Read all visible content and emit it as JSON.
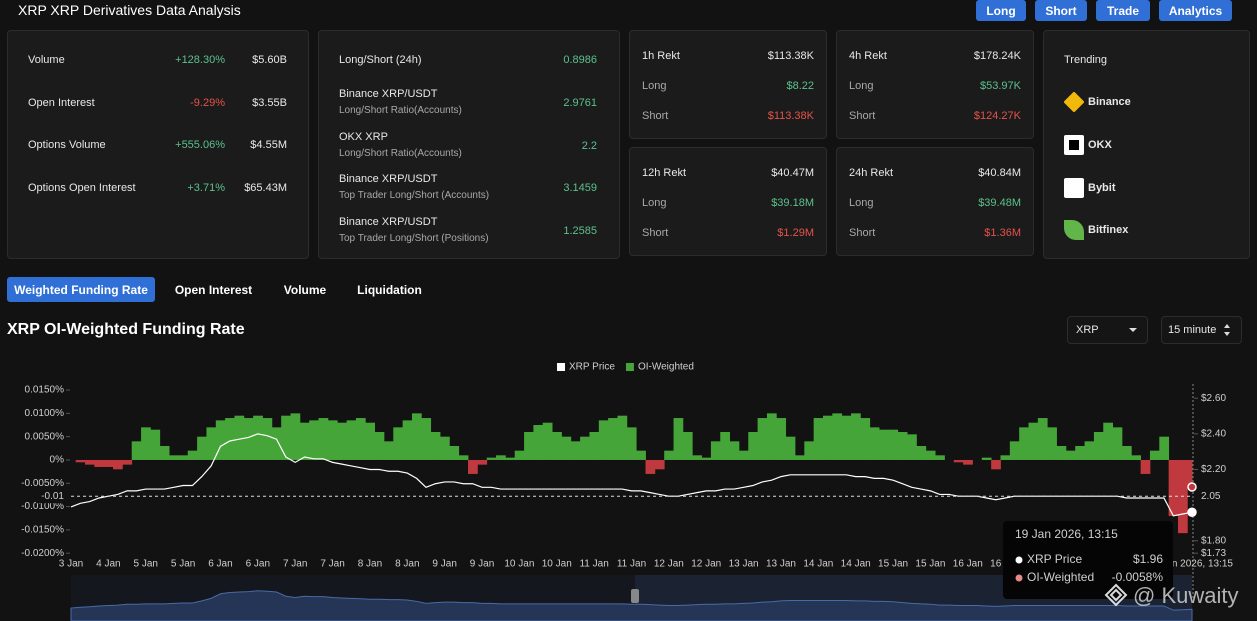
{
  "header": {
    "title": "XRP XRP Derivatives Data Analysis",
    "buttons": [
      "Long",
      "Short",
      "Trade",
      "Analytics"
    ]
  },
  "market_stats": {
    "rows": [
      {
        "label": "Volume",
        "change": "+128.30%",
        "value": "$5.60B"
      },
      {
        "label": "Open Interest",
        "change": "-9.29%",
        "value": "$3.55B"
      },
      {
        "label": "Options Volume",
        "change": "+555.06%",
        "value": "$4.55M"
      },
      {
        "label": "Options Open Interest",
        "change": "+3.71%",
        "value": "$65.43M"
      }
    ]
  },
  "long_short": {
    "rows": [
      {
        "label": "Long/Short (24h)",
        "value": "0.8986"
      },
      {
        "label": "Binance XRP/USDT",
        "sublabel": "Long/Short Ratio(Accounts)",
        "value": "2.9761"
      },
      {
        "label": "OKX XRP",
        "sublabel": "Long/Short Ratio(Accounts)",
        "value": "2.2"
      },
      {
        "label": "Binance XRP/USDT",
        "sublabel": "Top Trader Long/Short (Accounts)",
        "value": "3.1459"
      },
      {
        "label": "Binance XRP/USDT",
        "sublabel": "Top Trader Long/Short (Positions)",
        "value": "1.2585"
      }
    ]
  },
  "rekt": [
    {
      "title": "1h Rekt",
      "total": "$113.38K",
      "long_label": "Long",
      "long": "$8.22",
      "short_label": "Short",
      "short": "$113.38K"
    },
    {
      "title": "4h Rekt",
      "total": "$178.24K",
      "long_label": "Long",
      "long": "$53.97K",
      "short_label": "Short",
      "short": "$124.27K"
    },
    {
      "title": "12h Rekt",
      "total": "$40.47M",
      "long_label": "Long",
      "long": "$39.18M",
      "short_label": "Short",
      "short": "$1.29M"
    },
    {
      "title": "24h Rekt",
      "total": "$40.84M",
      "long_label": "Long",
      "long": "$39.48M",
      "short_label": "Short",
      "short": "$1.36M"
    }
  ],
  "trending": {
    "title": "Trending",
    "exchanges": [
      "Binance",
      "OKX",
      "Bybit",
      "Bitfinex"
    ]
  },
  "tabs": [
    {
      "label": "Weighted Funding Rate",
      "active": true
    },
    {
      "label": "Open Interest",
      "active": false
    },
    {
      "label": "Volume",
      "active": false
    },
    {
      "label": "Liquidation",
      "active": false
    }
  ],
  "chart_controls": {
    "asset": "XRP",
    "interval": "15 minute"
  },
  "chart_data": {
    "type": "combo",
    "title": "XRP OI-Weighted Funding Rate",
    "categories": [
      "3 Jan",
      null,
      null,
      null,
      "4 Jan",
      null,
      null,
      null,
      "5 Jan",
      null,
      null,
      null,
      "5 Jan",
      null,
      null,
      null,
      "6 Jan",
      null,
      null,
      null,
      "6 Jan",
      null,
      null,
      null,
      "7 Jan",
      null,
      null,
      null,
      "7 Jan",
      null,
      null,
      null,
      "8 Jan",
      null,
      null,
      null,
      "8 Jan",
      null,
      null,
      null,
      "9 Jan",
      null,
      null,
      null,
      "9 Jan",
      null,
      null,
      null,
      "10 Jan",
      null,
      null,
      null,
      "10 Jan",
      null,
      null,
      null,
      "11 Jan",
      null,
      null,
      null,
      "11 Jan",
      null,
      null,
      null,
      "12 Jan",
      null,
      null,
      null,
      "12 Jan",
      null,
      null,
      null,
      "13 Jan",
      null,
      null,
      null,
      "13 Jan",
      null,
      null,
      null,
      "14 Jan",
      null,
      null,
      null,
      "14 Jan",
      null,
      null,
      null,
      "15 Jan",
      null,
      null,
      null,
      "15 Jan",
      null,
      null,
      null,
      "16 Jan",
      null,
      null,
      null,
      "16 Jan",
      null,
      null,
      null,
      null,
      null,
      null,
      null,
      null,
      null,
      null,
      null,
      null,
      null,
      null,
      null,
      null,
      null,
      null,
      null,
      null
    ],
    "series": [
      {
        "name": "XRP Price",
        "type": "line",
        "axis": "y2",
        "color": "#ffffff",
        "values": [
          1.99,
          2.01,
          2.02,
          2.04,
          2.05,
          2.06,
          2.08,
          2.08,
          2.09,
          2.09,
          2.09,
          2.1,
          2.11,
          2.11,
          2.16,
          2.22,
          2.33,
          2.36,
          2.37,
          2.38,
          2.4,
          2.39,
          2.37,
          2.27,
          2.24,
          2.27,
          2.26,
          2.26,
          2.24,
          2.23,
          2.22,
          2.21,
          2.2,
          2.2,
          2.19,
          2.19,
          2.18,
          2.15,
          2.1,
          2.12,
          2.13,
          2.13,
          2.12,
          2.12,
          2.1,
          2.1,
          2.09,
          2.09,
          2.09,
          2.09,
          2.09,
          2.09,
          2.09,
          2.09,
          2.09,
          2.09,
          2.09,
          2.09,
          2.09,
          2.09,
          2.08,
          2.08,
          2.07,
          2.06,
          2.05,
          2.05,
          2.06,
          2.07,
          2.08,
          2.08,
          2.09,
          2.09,
          2.1,
          2.11,
          2.13,
          2.14,
          2.16,
          2.17,
          2.17,
          2.17,
          2.17,
          2.17,
          2.17,
          2.17,
          2.16,
          2.16,
          2.15,
          2.15,
          2.14,
          2.12,
          2.1,
          2.09,
          2.08,
          2.06,
          2.06,
          2.05,
          2.05,
          2.05,
          2.04,
          2.03,
          2.04,
          2.05,
          2.05,
          2.05,
          2.05,
          2.05,
          2.05,
          2.05,
          2.05,
          2.05,
          2.05,
          2.05,
          2.05,
          2.04,
          2.04,
          2.04,
          2.04,
          2.04,
          1.94,
          1.95,
          1.96
        ]
      },
      {
        "name": "OI-Weighted",
        "type": "area",
        "color": "#46a538",
        "negative_color": "#c0393e",
        "values": [
          0,
          -0.0005,
          -0.001,
          -0.0015,
          -0.0015,
          -0.002,
          -0.001,
          0.004,
          0.007,
          0.0065,
          0.003,
          0.001,
          0.001,
          0.002,
          0.005,
          0.007,
          0.0085,
          0.009,
          0.0095,
          0.009,
          0.0095,
          0.009,
          0.007,
          0.0095,
          0.01,
          0.008,
          0.0085,
          0.009,
          0.0085,
          0.008,
          0.0085,
          0.009,
          0.008,
          0.006,
          0.004,
          0.007,
          0.0085,
          0.01,
          0.009,
          0.006,
          0.005,
          0.003,
          0.001,
          -0.003,
          -0.001,
          0.0005,
          0.001,
          0.0005,
          0.002,
          0.006,
          0.0075,
          0.008,
          0.006,
          0.005,
          0.004,
          0.005,
          0.006,
          0.0085,
          0.009,
          0.0095,
          0.007,
          0.002,
          -0.003,
          -0.002,
          0.002,
          0.009,
          0.006,
          0.001,
          0.0005,
          0.004,
          0.006,
          0.004,
          0.002,
          0.006,
          0.009,
          0.01,
          0.009,
          0.005,
          0.001,
          0.004,
          0.009,
          0.0095,
          0.01,
          0.0095,
          0.01,
          0.009,
          0.007,
          0.0065,
          0.0065,
          0.006,
          0.0055,
          0.003,
          0.002,
          0.001,
          0,
          -0.0005,
          -0.001,
          0,
          0.0005,
          -0.002,
          0.001,
          0.004,
          0.007,
          0.008,
          0.009,
          0.007,
          0.003,
          0.002,
          0.003,
          0.004,
          0.006,
          0.008,
          0.007,
          0.003,
          0.001,
          -0.003,
          0.002,
          0.005,
          -0.012,
          -0.0157,
          -0.0058
        ]
      }
    ],
    "ylim": [
      -0.02,
      0.0163
    ],
    "yticks": [
      {
        "value": 0.015,
        "label": "0.0150%"
      },
      {
        "value": 0.01,
        "label": "0.0100%"
      },
      {
        "value": 0.005,
        "label": "0.0050%"
      },
      {
        "value": 0,
        "label": "0%"
      },
      {
        "value": -0.005,
        "label": "-0.0050%"
      },
      {
        "value": -0.01,
        "label": "-0.0100%"
      },
      {
        "value": -0.015,
        "label": "-0.0150%"
      },
      {
        "value": -0.02,
        "label": "-0.0200%"
      }
    ],
    "y2lim": [
      1.73,
      2.68
    ],
    "y2ticks": [
      {
        "value": 2.6,
        "label": "$2.60"
      },
      {
        "value": 2.4,
        "label": "$2.40"
      },
      {
        "value": 2.2,
        "label": "$2.20"
      },
      {
        "value": 1.8,
        "label": "$1.80"
      },
      {
        "value": 1.73,
        "label": "$1.73"
      }
    ],
    "legend": "top",
    "crosshair": {
      "y_label": "-0.01",
      "y2": 2.05
    },
    "tooltip": {
      "title": "19 Jan 2026, 13:15",
      "values": [
        "$1.96",
        "-0.0058%"
      ]
    },
    "watermark": "@ Kuwaity"
  }
}
